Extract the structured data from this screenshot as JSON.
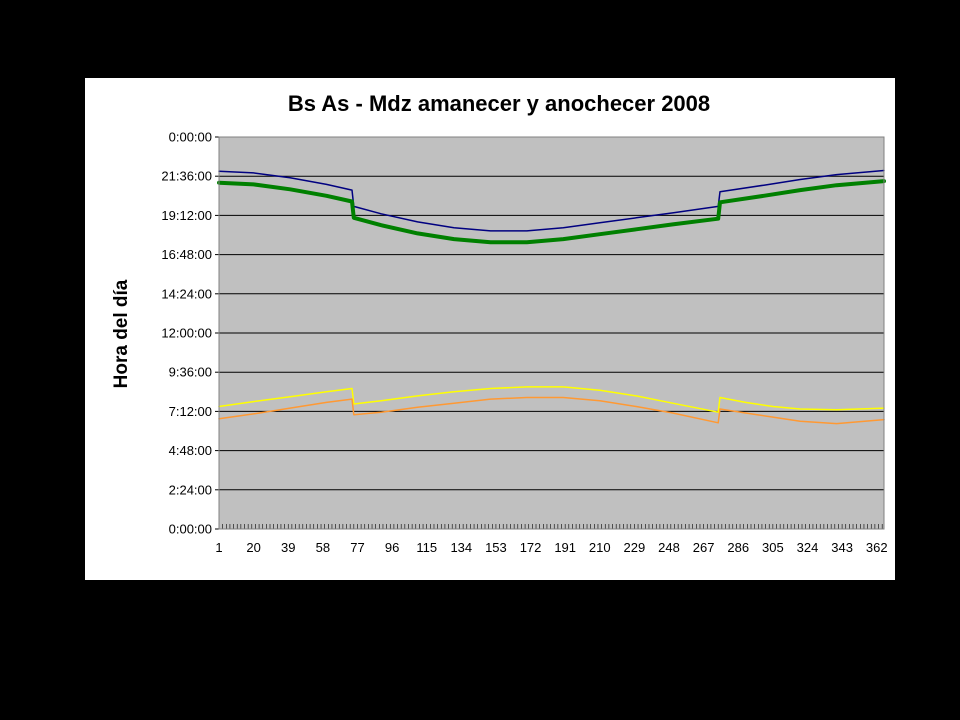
{
  "chart_data": {
    "type": "line",
    "title": "Bs As - Mdz amanecer y anochecer 2008",
    "ylabel": "Hora del día",
    "xlabel": "",
    "xlim": [
      1,
      366
    ],
    "ylim_hours": [
      0,
      24
    ],
    "x_tick_labels": [
      "1",
      "20",
      "39",
      "58",
      "77",
      "96",
      "115",
      "134",
      "153",
      "172",
      "191",
      "210",
      "229",
      "248",
      "267",
      "286",
      "305",
      "324",
      "343",
      "362"
    ],
    "y_tick_labels": [
      "0:00:00",
      "2:24:00",
      "4:48:00",
      "7:12:00",
      "9:36:00",
      "12:00:00",
      "14:24:00",
      "16:48:00",
      "19:12:00",
      "21:36:00",
      "0:00:00"
    ],
    "grid": true,
    "legend": "none",
    "plot_background": "#c0c0c0",
    "series": [
      {
        "color": "#000080",
        "width": 1.5,
        "points": [
          [
            1,
            21.9
          ],
          [
            20,
            21.8
          ],
          [
            40,
            21.5
          ],
          [
            60,
            21.1
          ],
          [
            74,
            20.75
          ],
          [
            75,
            19.75
          ],
          [
            90,
            19.3
          ],
          [
            110,
            18.8
          ],
          [
            130,
            18.45
          ],
          [
            150,
            18.25
          ],
          [
            170,
            18.25
          ],
          [
            190,
            18.45
          ],
          [
            210,
            18.75
          ],
          [
            230,
            19.05
          ],
          [
            250,
            19.35
          ],
          [
            275,
            19.75
          ],
          [
            276,
            20.65
          ],
          [
            300,
            21.05
          ],
          [
            320,
            21.4
          ],
          [
            340,
            21.7
          ],
          [
            366,
            21.95
          ]
        ]
      },
      {
        "color": "#008000",
        "width": 4,
        "points": [
          [
            1,
            21.2
          ],
          [
            20,
            21.1
          ],
          [
            40,
            20.8
          ],
          [
            60,
            20.4
          ],
          [
            74,
            20.05
          ],
          [
            75,
            19.05
          ],
          [
            90,
            18.6
          ],
          [
            110,
            18.1
          ],
          [
            130,
            17.75
          ],
          [
            150,
            17.55
          ],
          [
            170,
            17.55
          ],
          [
            190,
            17.75
          ],
          [
            210,
            18.05
          ],
          [
            230,
            18.35
          ],
          [
            250,
            18.65
          ],
          [
            275,
            19.0
          ],
          [
            276,
            20.0
          ],
          [
            300,
            20.4
          ],
          [
            320,
            20.75
          ],
          [
            340,
            21.05
          ],
          [
            366,
            21.3
          ]
        ]
      },
      {
        "color": "#ffff00",
        "width": 1.5,
        "points": [
          [
            1,
            7.5
          ],
          [
            20,
            7.8
          ],
          [
            40,
            8.1
          ],
          [
            60,
            8.4
          ],
          [
            74,
            8.6
          ],
          [
            75,
            7.65
          ],
          [
            90,
            7.85
          ],
          [
            110,
            8.15
          ],
          [
            130,
            8.4
          ],
          [
            150,
            8.6
          ],
          [
            170,
            8.7
          ],
          [
            190,
            8.7
          ],
          [
            210,
            8.5
          ],
          [
            230,
            8.15
          ],
          [
            250,
            7.7
          ],
          [
            275,
            7.15
          ],
          [
            276,
            8.05
          ],
          [
            290,
            7.75
          ],
          [
            305,
            7.5
          ],
          [
            320,
            7.35
          ],
          [
            340,
            7.3
          ],
          [
            366,
            7.4
          ]
        ]
      },
      {
        "color": "#ff9933",
        "width": 1.5,
        "points": [
          [
            1,
            6.75
          ],
          [
            20,
            7.05
          ],
          [
            40,
            7.4
          ],
          [
            60,
            7.75
          ],
          [
            74,
            7.95
          ],
          [
            75,
            7.0
          ],
          [
            90,
            7.15
          ],
          [
            110,
            7.45
          ],
          [
            130,
            7.7
          ],
          [
            150,
            7.95
          ],
          [
            170,
            8.05
          ],
          [
            190,
            8.05
          ],
          [
            210,
            7.85
          ],
          [
            230,
            7.5
          ],
          [
            250,
            7.1
          ],
          [
            275,
            6.5
          ],
          [
            276,
            7.35
          ],
          [
            290,
            7.1
          ],
          [
            305,
            6.85
          ],
          [
            320,
            6.6
          ],
          [
            340,
            6.45
          ],
          [
            366,
            6.7
          ]
        ]
      }
    ]
  }
}
